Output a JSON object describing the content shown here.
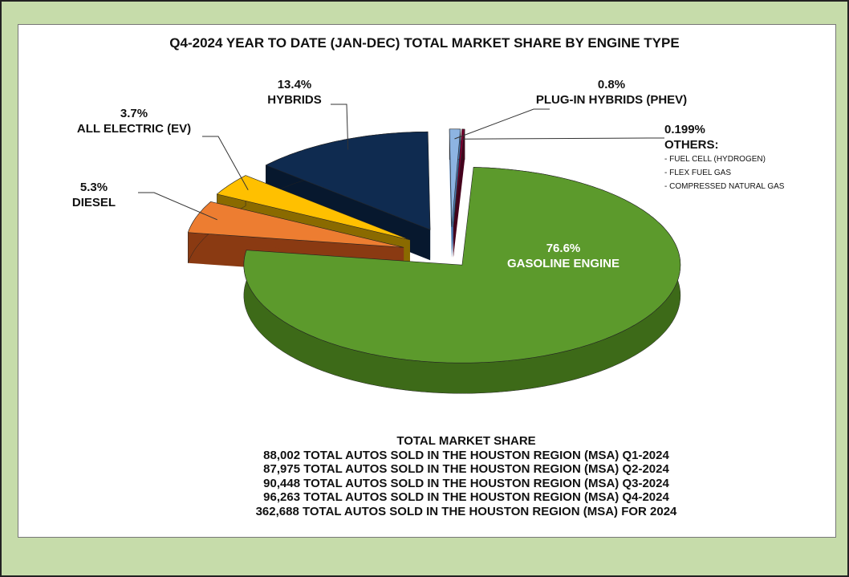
{
  "chart_data": {
    "type": "pie3d",
    "title": "Q4-2024 YEAR TO DATE (JAN-DEC) TOTAL MARKET SHARE BY ENGINE TYPE",
    "categories": [
      "GASOLINE ENGINE",
      "DIESEL",
      "ALL ELECTRIC (EV)",
      "HYBRIDS",
      "PLUG-IN HYBRIDS (PHEV)",
      "OTHERS:"
    ],
    "values": [
      76.6,
      5.3,
      3.7,
      13.4,
      0.8,
      0.199
    ],
    "value_labels": [
      "76.6%",
      "5.3%",
      "3.7%",
      "13.4%",
      "0.8%",
      "0.199%"
    ],
    "colors": [
      "#5c9a2c",
      "#ed7d31",
      "#ffc000",
      "#0f2b50",
      "#8db4e2",
      "#7a0030"
    ],
    "side_colors": [
      "#3d6a18",
      "#8a3a12",
      "#8a6a00",
      "#07182e",
      "#4a78b0",
      "#45001c"
    ],
    "others_notes": [
      "- FUEL CELL (HYDROGEN)",
      "- FLEX FUEL GAS",
      "- COMPRESSED NATURAL GAS"
    ],
    "footer": [
      "TOTAL MARKET SHARE",
      "88,002 TOTAL AUTOS SOLD IN THE HOUSTON REGION (MSA) Q1-2024",
      "87,975 TOTAL AUTOS SOLD IN THE HOUSTON REGION (MSA) Q2-2024",
      "90,448 TOTAL AUTOS SOLD IN THE HOUSTON REGION (MSA) Q3-2024",
      "96,263 TOTAL AUTOS SOLD IN THE HOUSTON REGION (MSA) Q4-2024",
      "362,688 TOTAL AUTOS SOLD IN THE HOUSTON REGION (MSA) FOR 2024"
    ]
  }
}
